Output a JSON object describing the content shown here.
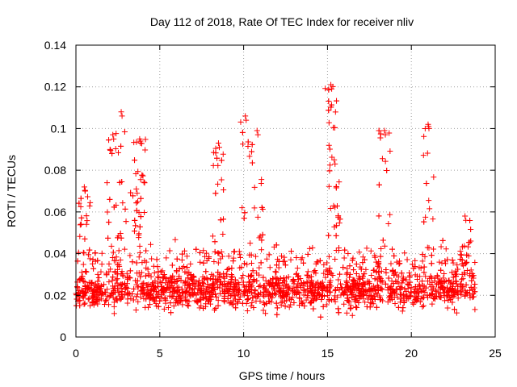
{
  "chart_data": {
    "type": "scatter",
    "title": "Day 112 of 2018, Rate Of TEC Index for receiver nliv",
    "xlabel": "GPS time / hours",
    "ylabel": "ROTI / TECUs",
    "xlim": [
      0,
      25
    ],
    "ylim": [
      0,
      0.14
    ],
    "x_ticks": [
      0,
      5,
      10,
      15,
      20,
      25
    ],
    "x_tick_labels": [
      "0",
      "5",
      "10",
      "15",
      "20",
      "25"
    ],
    "y_ticks": [
      0,
      0.02,
      0.04,
      0.06,
      0.08,
      0.1,
      0.12,
      0.14
    ],
    "y_tick_labels": [
      "0",
      "0.02",
      "0.04",
      "0.06",
      "0.08",
      "0.1",
      "0.12",
      "0.14"
    ],
    "grid": true,
    "marker": "+",
    "color": "#ff0000",
    "series": [
      {
        "name": "ROTI",
        "baseline_mean": 0.022,
        "peaks": [
          {
            "x": 0.5,
            "y": 0.072
          },
          {
            "x": 2.2,
            "y": 0.097
          },
          {
            "x": 2.7,
            "y": 0.108
          },
          {
            "x": 3.6,
            "y": 0.071
          },
          {
            "x": 3.8,
            "y": 0.095
          },
          {
            "x": 8.5,
            "y": 0.093
          },
          {
            "x": 10.1,
            "y": 0.106
          },
          {
            "x": 10.8,
            "y": 0.099
          },
          {
            "x": 15.2,
            "y": 0.121
          },
          {
            "x": 15.4,
            "y": 0.085
          },
          {
            "x": 18.4,
            "y": 0.099
          },
          {
            "x": 21.0,
            "y": 0.102
          },
          {
            "x": 23.2,
            "y": 0.058
          }
        ]
      }
    ]
  }
}
